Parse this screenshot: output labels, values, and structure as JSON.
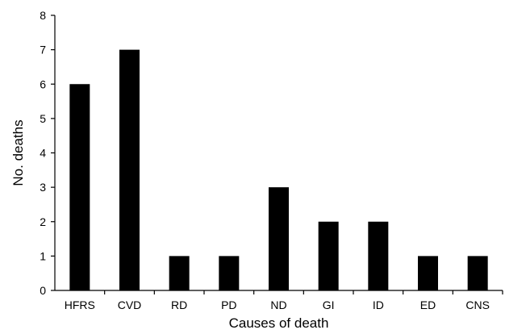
{
  "chart_data": {
    "type": "bar",
    "title": "",
    "xlabel": "Causes of death",
    "ylabel": "No. deaths",
    "categories": [
      "HFRS",
      "CVD",
      "RD",
      "PD",
      "ND",
      "GI",
      "ID",
      "ED",
      "CNS"
    ],
    "values": [
      6,
      7,
      1,
      1,
      3,
      2,
      2,
      1,
      1
    ],
    "ylim": [
      0,
      8
    ],
    "yticks": [
      "0",
      "1",
      "2",
      "3",
      "4",
      "5",
      "6",
      "7",
      "8"
    ],
    "grid": false,
    "bar_color": "#000000",
    "axis_color": "#000000"
  }
}
